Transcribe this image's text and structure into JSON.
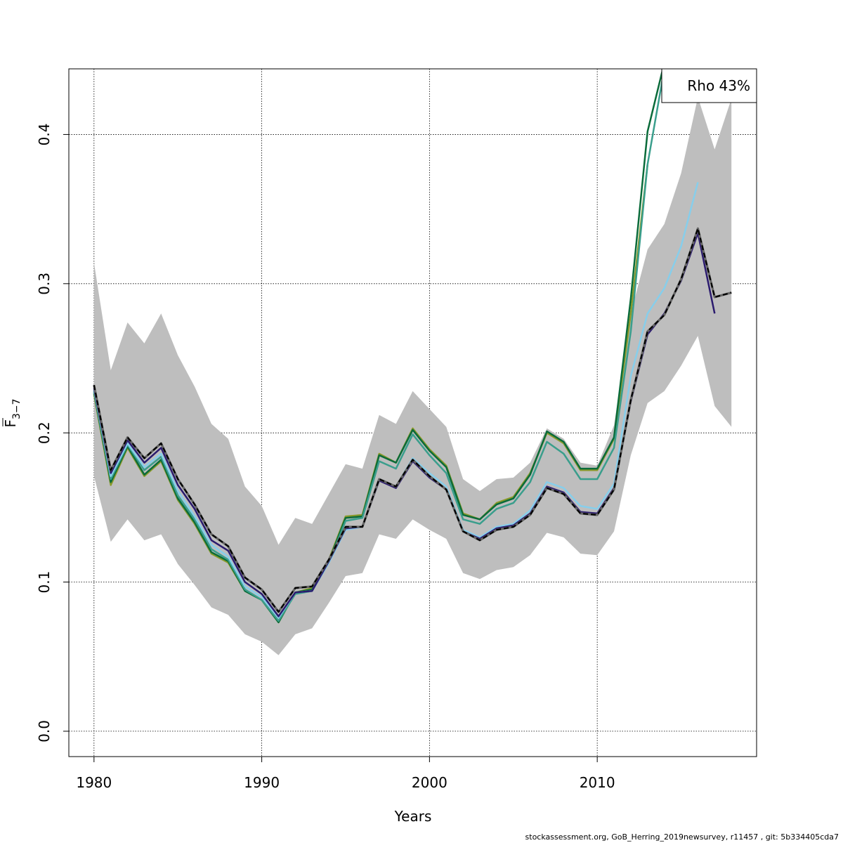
{
  "chart_data": {
    "type": "line",
    "xlabel": "Years",
    "ylabel": "F̄3−7",
    "ylabel_main": "F",
    "ylabel_sub": "3−7",
    "xlim": [
      1978.5,
      2019.5
    ],
    "ylim": [
      -0.017,
      0.444
    ],
    "xticks": [
      1980,
      1990,
      2000,
      2010
    ],
    "yticks": [
      0.0,
      0.1,
      0.2,
      0.3,
      0.4
    ],
    "xtick_labels": [
      "1980",
      "1990",
      "2000",
      "2010"
    ],
    "ytick_labels": [
      "0.0",
      "0.1",
      "0.2",
      "0.3",
      "0.4"
    ],
    "grid": true,
    "legend": {
      "text": "Rho 43%",
      "placement": "top-right"
    },
    "confidence_band": {
      "color": "#bebebe",
      "x": [
        1980,
        1981,
        1982,
        1983,
        1984,
        1985,
        1986,
        1987,
        1988,
        1989,
        1990,
        1991,
        1992,
        1993,
        1994,
        1995,
        1996,
        1997,
        1998,
        1999,
        2000,
        2001,
        2002,
        2003,
        2004,
        2005,
        2006,
        2007,
        2008,
        2009,
        2010,
        2011,
        2012,
        2013,
        2014,
        2015,
        2016,
        2017,
        2018
      ],
      "lower": [
        0.171,
        0.127,
        0.142,
        0.128,
        0.132,
        0.112,
        0.098,
        0.083,
        0.078,
        0.065,
        0.06,
        0.051,
        0.065,
        0.069,
        0.086,
        0.104,
        0.106,
        0.132,
        0.129,
        0.142,
        0.135,
        0.129,
        0.106,
        0.102,
        0.108,
        0.11,
        0.118,
        0.133,
        0.13,
        0.119,
        0.118,
        0.134,
        0.185,
        0.22,
        0.228,
        0.245,
        0.265,
        0.218,
        0.204
      ],
      "upper": [
        0.314,
        0.242,
        0.274,
        0.26,
        0.28,
        0.252,
        0.231,
        0.206,
        0.196,
        0.164,
        0.151,
        0.125,
        0.143,
        0.139,
        0.159,
        0.179,
        0.176,
        0.212,
        0.206,
        0.228,
        0.216,
        0.204,
        0.169,
        0.161,
        0.169,
        0.17,
        0.18,
        0.203,
        0.196,
        0.18,
        0.178,
        0.205,
        0.28,
        0.323,
        0.34,
        0.374,
        0.425,
        0.39,
        0.424
      ]
    },
    "series": [
      {
        "color": "#000000",
        "dashed": true,
        "x": [
          1980,
          1981,
          1982,
          1983,
          1984,
          1985,
          1986,
          1987,
          1988,
          1989,
          1990,
          1991,
          1992,
          1993,
          1994,
          1995,
          1996,
          1997,
          1998,
          1999,
          2000,
          2001,
          2002,
          2003,
          2004,
          2005,
          2006,
          2007,
          2008,
          2009,
          2010,
          2011,
          2012,
          2013,
          2014,
          2015,
          2016,
          2017,
          2018
        ],
        "values": [
          0.232,
          0.175,
          0.197,
          0.183,
          0.193,
          0.169,
          0.152,
          0.132,
          0.124,
          0.103,
          0.095,
          0.08,
          0.096,
          0.097,
          0.115,
          0.137,
          0.137,
          0.169,
          0.164,
          0.182,
          0.171,
          0.162,
          0.134,
          0.128,
          0.135,
          0.137,
          0.145,
          0.163,
          0.159,
          0.146,
          0.145,
          0.162,
          0.222,
          0.268,
          0.279,
          0.303,
          0.337,
          0.291,
          0.294
        ]
      },
      {
        "color": "#2b1b6e",
        "dashed": false,
        "x": [
          1980,
          1981,
          1982,
          1983,
          1984,
          1985,
          1986,
          1987,
          1988,
          1989,
          1990,
          1991,
          1992,
          1993,
          1994,
          1995,
          1996,
          1997,
          1998,
          1999,
          2000,
          2001,
          2002,
          2003,
          2004,
          2005,
          2006,
          2007,
          2008,
          2009,
          2010,
          2011,
          2012,
          2013,
          2014,
          2015,
          2016,
          2017
        ],
        "values": [
          0.23,
          0.173,
          0.195,
          0.18,
          0.19,
          0.165,
          0.149,
          0.128,
          0.121,
          0.1,
          0.092,
          0.077,
          0.093,
          0.094,
          0.114,
          0.136,
          0.137,
          0.168,
          0.163,
          0.181,
          0.17,
          0.162,
          0.134,
          0.129,
          0.136,
          0.138,
          0.146,
          0.164,
          0.16,
          0.147,
          0.146,
          0.163,
          0.221,
          0.266,
          0.28,
          0.302,
          0.334,
          0.28
        ]
      },
      {
        "color": "#87ceeb",
        "dashed": false,
        "x": [
          1980,
          1981,
          1982,
          1983,
          1984,
          1985,
          1986,
          1987,
          1988,
          1989,
          1990,
          1991,
          1992,
          1993,
          1994,
          1995,
          1996,
          1997,
          1998,
          1999,
          2000,
          2001,
          2002,
          2003,
          2004,
          2005,
          2006,
          2007,
          2008,
          2009,
          2010,
          2011,
          2012,
          2013,
          2014,
          2015,
          2016
        ],
        "values": [
          0.229,
          0.171,
          0.193,
          0.177,
          0.186,
          0.161,
          0.144,
          0.125,
          0.117,
          0.097,
          0.09,
          0.076,
          0.093,
          0.094,
          0.113,
          0.135,
          0.137,
          0.169,
          0.164,
          0.183,
          0.173,
          0.164,
          0.135,
          0.13,
          0.137,
          0.139,
          0.148,
          0.167,
          0.163,
          0.151,
          0.149,
          0.166,
          0.238,
          0.28,
          0.297,
          0.325,
          0.368
        ]
      },
      {
        "color": "#3a9e8c",
        "dashed": false,
        "x": [
          1980,
          1981,
          1982,
          1983,
          1984,
          1985,
          1986,
          1987,
          1988,
          1989,
          1990,
          1991,
          1992,
          1993,
          1994,
          1995,
          1996,
          1997,
          1998,
          1999,
          2000,
          2001,
          2002,
          2003,
          2004,
          2005,
          2006,
          2007,
          2008,
          2009,
          2010,
          2011,
          2012,
          2013,
          2014
        ],
        "values": [
          0.228,
          0.169,
          0.192,
          0.175,
          0.184,
          0.158,
          0.142,
          0.122,
          0.115,
          0.095,
          0.088,
          0.074,
          0.092,
          0.094,
          0.113,
          0.141,
          0.143,
          0.181,
          0.176,
          0.199,
          0.185,
          0.173,
          0.142,
          0.139,
          0.149,
          0.153,
          0.167,
          0.194,
          0.186,
          0.169,
          0.169,
          0.19,
          0.268,
          0.38,
          0.444
        ]
      },
      {
        "color": "#0a6b3a",
        "dashed": false,
        "x": [
          1980,
          1981,
          1982,
          1983,
          1984,
          1985,
          1986,
          1987,
          1988,
          1989,
          1990,
          1991,
          1992,
          1993,
          1994,
          1995,
          1996,
          1997,
          1998,
          1999,
          2000,
          2001,
          2002,
          2003,
          2004,
          2005,
          2006,
          2007,
          2008,
          2009,
          2010,
          2011,
          2012,
          2013,
          2014
        ],
        "values": [
          0.227,
          0.167,
          0.191,
          0.172,
          0.182,
          0.156,
          0.14,
          0.12,
          0.114,
          0.094,
          0.088,
          0.073,
          0.093,
          0.095,
          0.114,
          0.143,
          0.144,
          0.185,
          0.18,
          0.202,
          0.188,
          0.177,
          0.145,
          0.142,
          0.152,
          0.156,
          0.172,
          0.201,
          0.194,
          0.176,
          0.176,
          0.197,
          0.29,
          0.402,
          0.448
        ]
      },
      {
        "color": "#8a9a2a",
        "dashed": false,
        "x": [
          1980,
          1981,
          1982,
          1983,
          1984,
          1985,
          1986,
          1987,
          1988,
          1989,
          1990,
          1991,
          1992,
          1993,
          1994,
          1995,
          1996,
          1997,
          1998,
          1999,
          2000,
          2001,
          2002,
          2003,
          2004,
          2005,
          2006,
          2007,
          2008,
          2009,
          2010,
          2011,
          2012,
          2013
        ],
        "values": [
          0.226,
          0.165,
          0.19,
          0.171,
          0.181,
          0.155,
          0.139,
          0.119,
          0.113,
          0.094,
          0.088,
          0.073,
          0.093,
          0.096,
          0.115,
          0.144,
          0.145,
          0.186,
          0.18,
          0.203,
          0.189,
          0.178,
          0.146,
          0.142,
          0.153,
          0.157,
          0.173,
          0.2,
          0.193,
          0.175,
          0.175,
          0.196,
          0.28,
          0.38
        ]
      }
    ]
  },
  "footer": {
    "text": "stockassessment.org, GoB_Herring_2019newsurvey, r11457 , git: 5b334405cda7"
  }
}
